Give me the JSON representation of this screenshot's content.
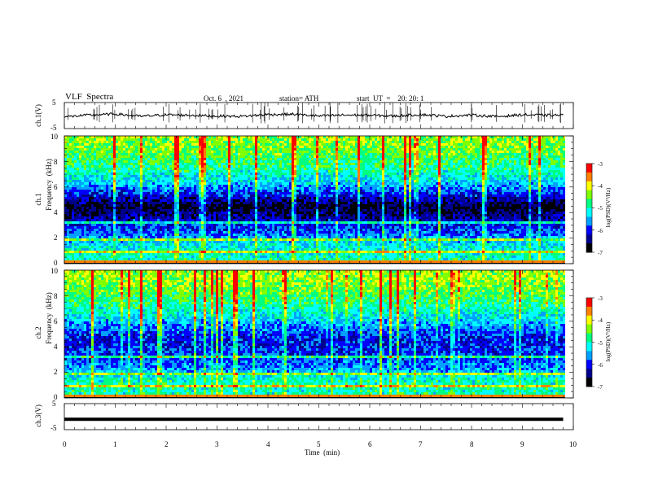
{
  "header": {
    "title": "VLF  Spectra",
    "date": "Oct. 6  , 2021",
    "station": "station= ATH",
    "start": "start  UT  =    20: 20: 1"
  },
  "panels": {
    "ch1_voltage": {
      "ylabel": "ch.1(V)",
      "ymin_label": "-5",
      "ymax_label": "5"
    },
    "ch1_spectrogram": {
      "ylabel_channel": "ch.1",
      "ylabel": "Frequency  (kHz)",
      "ticks": [
        "0",
        "2",
        "4",
        "6",
        "8",
        "10"
      ]
    },
    "ch2_spectrogram": {
      "ylabel_channel": "ch.2",
      "ylabel": "Frequency  (kHz)",
      "ticks": [
        "0",
        "2",
        "4",
        "6",
        "8",
        "10"
      ]
    },
    "ch3_voltage": {
      "ylabel": "ch.3(V)",
      "ymin_label": "-5",
      "ymax_label": "5"
    }
  },
  "colorbar": {
    "label": "log(PSD)(V²/Hz)",
    "ticks": [
      "-3",
      "-4",
      "-5",
      "-6",
      "-7"
    ]
  },
  "xaxis": {
    "label": "Time  (min)",
    "ticks": [
      "0",
      "1",
      "2",
      "3",
      "4",
      "5",
      "6",
      "7",
      "8",
      "9",
      "10"
    ]
  },
  "colors": {
    "colormap": [
      "#000000",
      "#00008f",
      "#0000ff",
      "#00a0ff",
      "#00ffff",
      "#00ff80",
      "#80ff00",
      "#ffff00",
      "#ff8000",
      "#ff0000",
      "#ffffff"
    ],
    "trace": "#000000"
  },
  "chart_data": [
    {
      "type": "line",
      "name": "ch1_voltage",
      "xlabel": "Time  (min)",
      "ylabel": "ch.1(V)",
      "xlim": [
        0,
        10
      ],
      "ylim": [
        -5,
        5
      ],
      "x": [
        0,
        0.5,
        1,
        1.5,
        2,
        2.5,
        3,
        3.5,
        4,
        4.5,
        5,
        5.5,
        6,
        6.5,
        7,
        7.5,
        8,
        8.5,
        9,
        9.5,
        9.8
      ],
      "y": [
        -0.5,
        0.2,
        0.6,
        -0.3,
        0.3,
        0.1,
        -0.2,
        -0.3,
        0.4,
        0.5,
        -0.2,
        0.2,
        0.1,
        -0.2,
        0.4,
        -0.3,
        0.2,
        -0.4,
        0.3,
        0.1,
        0.2
      ]
    },
    {
      "type": "heatmap",
      "name": "ch1_spectrogram",
      "xlabel": "Time  (min)",
      "ylabel": "Frequency  (kHz)",
      "xlim": [
        0,
        10
      ],
      "ylim": [
        0,
        10
      ],
      "data_extent_x": [
        0,
        9.8
      ],
      "colorbar_label": "log(PSD)(V²/Hz)",
      "zlim": [
        -7,
        -3
      ],
      "frequency_kHz": [
        0.5,
        1.5,
        2.5,
        3.5,
        4.5,
        5.5,
        6.5,
        7.5,
        8.5,
        9.5
      ],
      "typical_log_psd": [
        -5.0,
        -5.2,
        -5.8,
        -6.2,
        -6.8,
        -6.0,
        -5.3,
        -4.9,
        -4.6,
        -4.4
      ]
    },
    {
      "type": "heatmap",
      "name": "ch2_spectrogram",
      "xlabel": "Time  (min)",
      "ylabel": "Frequency  (kHz)",
      "xlim": [
        0,
        10
      ],
      "ylim": [
        0,
        10
      ],
      "data_extent_x": [
        0,
        9.8
      ],
      "colorbar_label": "log(PSD)(V²/Hz)",
      "zlim": [
        -7,
        -3
      ],
      "frequency_kHz": [
        0.5,
        1.5,
        2.5,
        3.5,
        4.5,
        5.5,
        6.5,
        7.5,
        8.5,
        9.5
      ],
      "typical_log_psd": [
        -5.0,
        -5.0,
        -5.7,
        -5.9,
        -6.1,
        -5.7,
        -5.2,
        -4.8,
        -4.5,
        -4.3
      ]
    },
    {
      "type": "line",
      "name": "ch3_voltage",
      "xlabel": "Time  (min)",
      "ylabel": "ch.3(V)",
      "xlim": [
        0,
        10
      ],
      "ylim": [
        -5,
        5
      ],
      "x": [
        0,
        9.8
      ],
      "y": [
        -1.0,
        -1.0
      ]
    }
  ]
}
